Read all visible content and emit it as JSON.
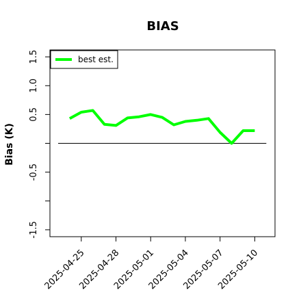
{
  "chart_data": {
    "type": "line",
    "title": "BIAS",
    "y_label": "Bias (K)",
    "x": [
      "2025-04-24",
      "2025-04-25",
      "2025-04-26",
      "2025-04-27",
      "2025-04-28",
      "2025-04-29",
      "2025-04-30",
      "2025-05-01",
      "2025-05-02",
      "2025-05-03",
      "2025-05-04",
      "2025-05-05",
      "2025-05-06",
      "2025-05-07",
      "2025-05-08",
      "2025-05-09",
      "2025-05-10"
    ],
    "series": [
      {
        "name": "best est.",
        "color": "#00ff00",
        "values": [
          0.43,
          0.54,
          0.57,
          0.33,
          0.31,
          0.44,
          0.46,
          0.5,
          0.45,
          0.32,
          0.38,
          0.4,
          0.43,
          0.19,
          0.0,
          0.22,
          0.22
        ]
      }
    ],
    "reference_line": {
      "value": 0,
      "x": [
        "2025-04-23",
        "2025-05-11"
      ],
      "color": "#000000"
    },
    "xlim": [
      "2025-04-22T07:00",
      "2025-05-11T18:00"
    ],
    "xticks": [
      "2025-04-25",
      "2025-04-28",
      "2025-05-01",
      "2025-05-04",
      "2025-05-07",
      "2025-05-10"
    ],
    "ylim": [
      -1.62,
      1.62
    ],
    "yticks": [
      {
        "value": -1.5,
        "label": "-1.5"
      },
      {
        "value": -1.0,
        "label": null
      },
      {
        "value": -0.5,
        "label": "-0.5"
      },
      {
        "value": 0,
        "label": null
      },
      {
        "value": 0.5,
        "label": "0.5"
      },
      {
        "value": 1.0,
        "label": "1.0"
      },
      {
        "value": 1.5,
        "label": "1.5"
      }
    ],
    "legend": "top-left"
  }
}
